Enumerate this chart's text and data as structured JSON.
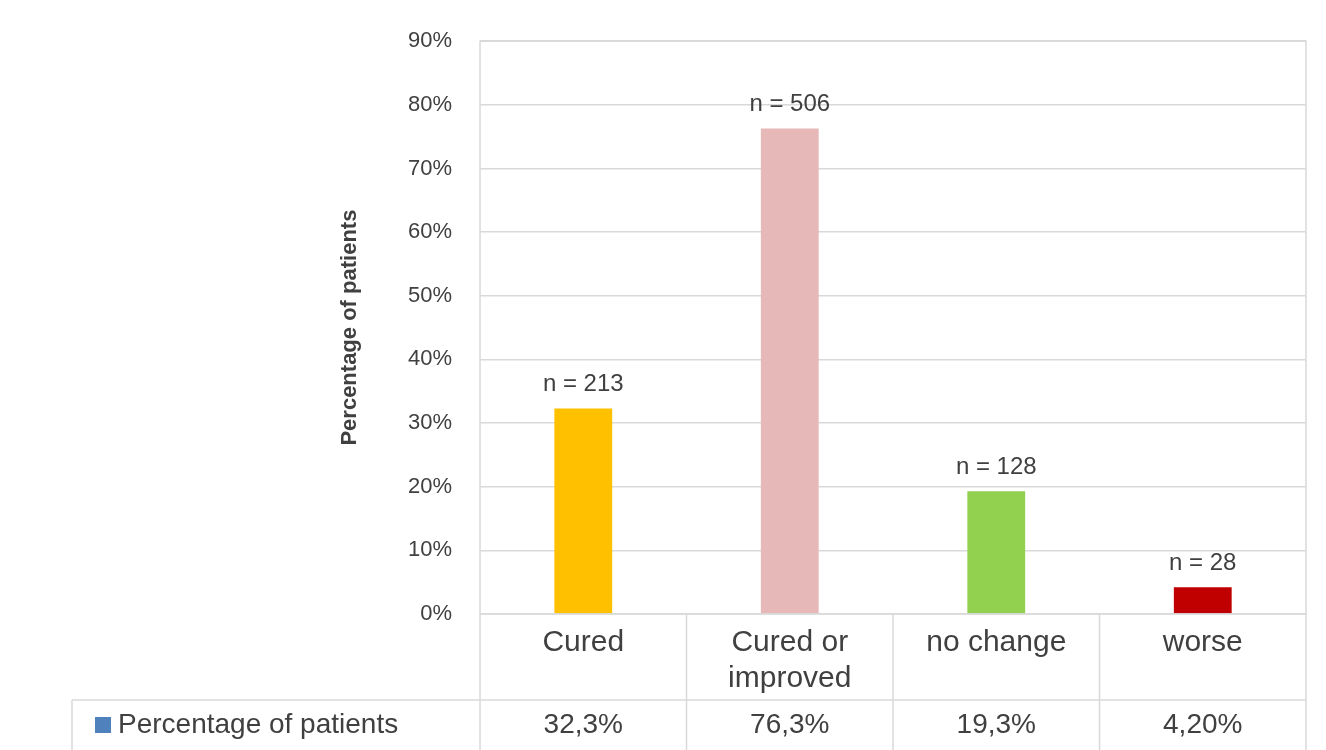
{
  "chart_data": {
    "type": "bar",
    "ylabel": "Percentage of patients",
    "categories": [
      "Cured",
      "Cured or improved",
      "no change",
      "worse"
    ],
    "series": [
      {
        "name": "Percentage of patients",
        "color": "#4f81bd",
        "colors": [
          "#ffc000",
          "#e6b8b7",
          "#92d050",
          "#c00000"
        ],
        "values": [
          32.3,
          76.3,
          19.3,
          4.2
        ],
        "value_labels": [
          "32,3%",
          "76,3%",
          "19,3%",
          "4,20%"
        ]
      }
    ],
    "ylim": [
      0,
      90
    ],
    "yticks": [
      {
        "value": 0,
        "label": "0%"
      },
      {
        "value": 10,
        "label": "10%"
      },
      {
        "value": 20,
        "label": "20%"
      },
      {
        "value": 30,
        "label": "30%"
      },
      {
        "value": 40,
        "label": "40%"
      },
      {
        "value": 50,
        "label": "50%"
      },
      {
        "value": 60,
        "label": "60%"
      },
      {
        "value": 70,
        "label": "70%"
      },
      {
        "value": 80,
        "label": "80%"
      },
      {
        "value": 90,
        "label": "90%"
      }
    ],
    "grid": true,
    "legend": "bottom",
    "annotations": [
      {
        "text": "n = 213",
        "x": "Cured",
        "y": 32.3
      },
      {
        "text": "n = 506",
        "x": "Cured or improved",
        "y": 76.3
      },
      {
        "text": "n = 128",
        "x": "no change",
        "y": 19.3
      },
      {
        "text": "n = 28",
        "x": "worse",
        "y": 4.2
      }
    ]
  }
}
